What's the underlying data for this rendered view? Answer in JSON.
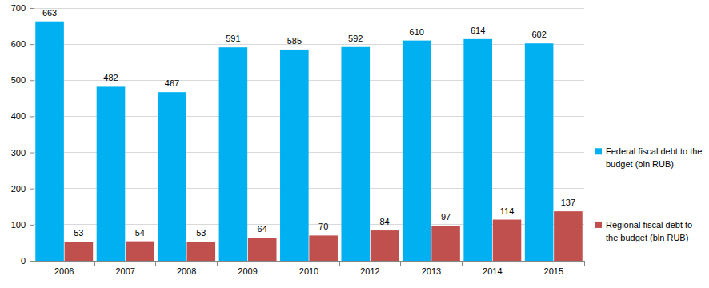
{
  "chart_data": {
    "type": "bar",
    "categories": [
      "2006",
      "2007",
      "2008",
      "2009",
      "2010",
      "2012",
      "2013",
      "2014",
      "2015"
    ],
    "series": [
      {
        "name": "Federal fiscal debt to the budget (bln RUB)",
        "color": "#00b0f0",
        "values": [
          663,
          482,
          467,
          591,
          585,
          592,
          610,
          614,
          602
        ]
      },
      {
        "name": "Regional fiscal debt to the budget (bln RUB)",
        "color": "#c0504d",
        "values": [
          53,
          54,
          53,
          64,
          70,
          84,
          97,
          114,
          137
        ]
      }
    ],
    "ylim": [
      0,
      700
    ],
    "yticks": [
      0,
      100,
      200,
      300,
      400,
      500,
      600,
      700
    ],
    "grid": true,
    "legend": "right",
    "data_labels": true
  }
}
